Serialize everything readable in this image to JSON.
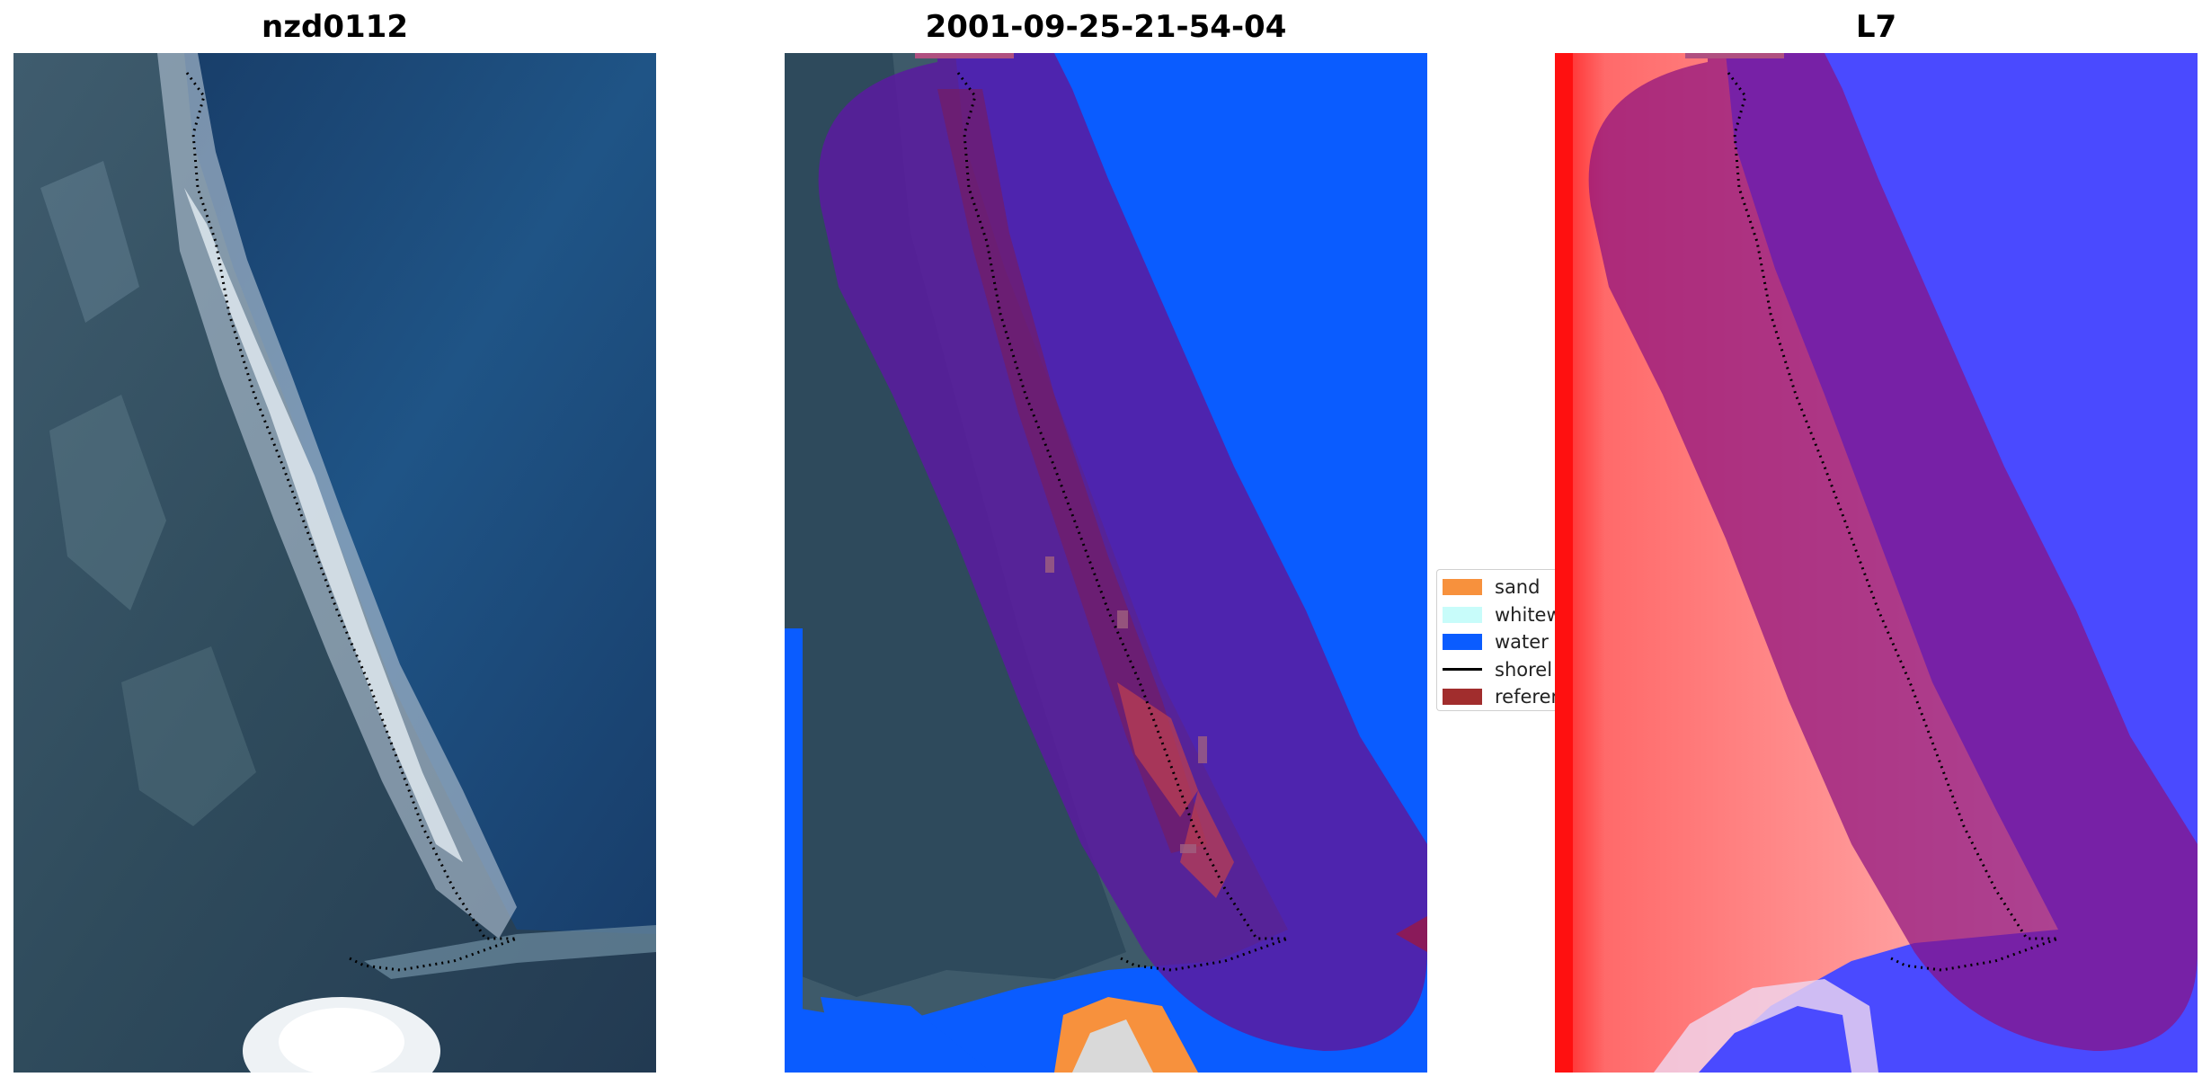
{
  "panels": {
    "left": {
      "title": "nzd0112",
      "image": "rgb-satellite-image"
    },
    "middle": {
      "title": "2001-09-25-21-54-04",
      "image": "classification-overlay"
    },
    "right": {
      "title": "L7",
      "image": "water-index-image"
    }
  },
  "legend": {
    "items": [
      {
        "label": "sand",
        "color": "#f7913d",
        "kind": "patch"
      },
      {
        "label": "whitew",
        "color": "#c8fcfa",
        "kind": "patch"
      },
      {
        "label": "water",
        "color": "#0a5cff",
        "kind": "patch"
      },
      {
        "label": "shorel",
        "color": "#000000",
        "kind": "line"
      },
      {
        "label": "referen",
        "color": "#a12d2d",
        "kind": "patch"
      }
    ]
  },
  "colors": {
    "ocean": "#1f4b78",
    "water_class": "#0a5cff",
    "buffer_overlay": "#5a1aa0",
    "reference_shoreline": "#a12d2d",
    "land_index": "#ff5a5a",
    "water_index": "#4a4aff"
  }
}
